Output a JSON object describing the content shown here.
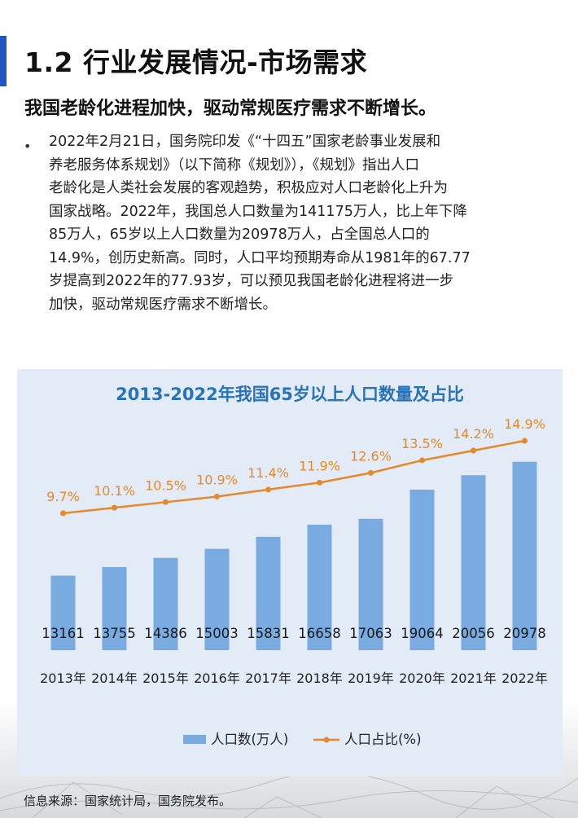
{
  "section_title": "1.2 行业发展情况-市场需求",
  "subtitle": "我国老龄化进程加快，驱动常规医疗需求不断增长。",
  "bullet": "•",
  "paragraph_lines": [
    "2022年2月21日，国务院印发《“十四五”国家老龄事业发展和",
    "养老服务体系规划》（以下简称《规划》），《规划》指出人口",
    "老龄化是人类社会发展的客观趋势，积极应对人口老龄化上升为",
    "国家战略。2022年，我国总人口数量为141175万人，比上年下降",
    "85万人，65岁以上人口数量为20978万人，占全国总人口的",
    "14.9%，创历史新高。同时，人口平均预期寿命从1981年的67.77",
    "岁提高到2022年的77.93岁，可以预见我国老龄化进程将进一步",
    "加快，驱动常规医疗需求不断增长。"
  ],
  "source_note": "信息来源：国家统计局，国务院发布。",
  "colors": {
    "accent": "#1f55c0",
    "bar": "#79abe0",
    "line": "#e5892c",
    "title": "#2873b8"
  },
  "chart_data": {
    "type": "bar",
    "title": "2013-2022年我国65岁以上人口数量及占比",
    "categories": [
      "2013年",
      "2014年",
      "2015年",
      "2016年",
      "2017年",
      "2018年",
      "2019年",
      "2020年",
      "2021年",
      "2022年"
    ],
    "series": [
      {
        "name": "人口数(万人)",
        "type": "bar",
        "values": [
          13161,
          13755,
          14386,
          15003,
          15831,
          16658,
          17063,
          19064,
          20056,
          20978
        ]
      },
      {
        "name": "人口占比(%)",
        "type": "line",
        "values": [
          9.7,
          10.1,
          10.5,
          10.9,
          11.4,
          11.9,
          12.6,
          13.5,
          14.2,
          14.9
        ]
      }
    ],
    "value_labels": [
      "13161",
      "13755",
      "14386",
      "15003",
      "15831",
      "16658",
      "17063",
      "19064",
      "20056",
      "20978"
    ],
    "pct_labels": [
      "9.7%",
      "10.1%",
      "10.5%",
      "10.9%",
      "11.4%",
      "11.9%",
      "12.6%",
      "13.5%",
      "14.2%",
      "14.9%"
    ],
    "grid": false,
    "legend_position": "bottom"
  }
}
